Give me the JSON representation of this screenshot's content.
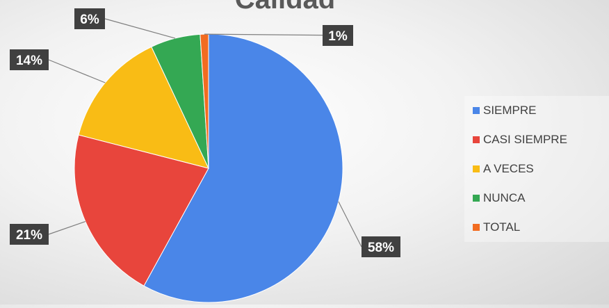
{
  "chart_data": {
    "type": "pie",
    "title": "Calidad",
    "start_angle_deg": 0,
    "direction": "clockwise",
    "legend_position": "right",
    "slices": [
      {
        "name": "SIEMPRE",
        "value": 58,
        "label": "58%",
        "color": "#4a86e8"
      },
      {
        "name": "CASI SIEMPRE",
        "value": 21,
        "label": "21%",
        "color": "#e8453c"
      },
      {
        "name": "A VECES",
        "value": 14,
        "label": "14%",
        "color": "#f9bc15"
      },
      {
        "name": "NUNCA",
        "value": 6,
        "label": "6%",
        "color": "#34a853"
      },
      {
        "name": "TOTAL",
        "value": 1,
        "label": "1%",
        "color": "#f26c21"
      }
    ]
  }
}
